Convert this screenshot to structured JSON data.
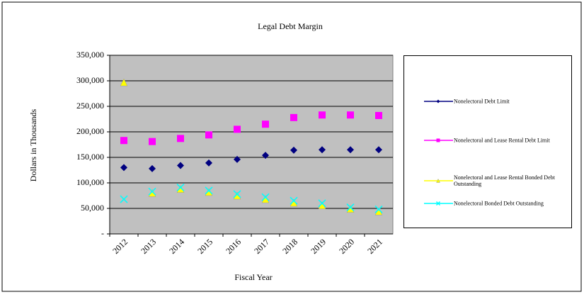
{
  "chart_data": {
    "type": "scatter",
    "title": "Legal Debt Margin",
    "x_label": "Fiscal Year",
    "y_label": "Dollars in Thousands",
    "categories": [
      "2012",
      "2013",
      "2014",
      "2015",
      "2016",
      "2017",
      "2018",
      "2019",
      "2020",
      "2021"
    ],
    "series": [
      {
        "name": "Nonelectoral Debt Limit",
        "color": "#000080",
        "marker": "diamond",
        "values": [
          130000,
          128000,
          134000,
          139000,
          146000,
          154000,
          164000,
          165000,
          165000,
          165000
        ]
      },
      {
        "name": "Nonelectoral and Lease Rental Debt Limit",
        "color": "#ff00ff",
        "marker": "square",
        "values": [
          183000,
          181000,
          187000,
          194000,
          205000,
          215000,
          228000,
          233000,
          233000,
          232000
        ]
      },
      {
        "name": "Nonelectoral and Lease Rental Bonded Debt Outstanding",
        "color": "#ffff00",
        "marker": "triangle",
        "values": [
          297000,
          80000,
          88000,
          82000,
          75000,
          68000,
          61000,
          56000,
          49000,
          44000
        ]
      },
      {
        "name": "Nonelectoral Bonded Debt Outstanding",
        "color": "#00ffff",
        "marker": "x",
        "values": [
          68000,
          83000,
          91000,
          85000,
          78000,
          72000,
          65000,
          60000,
          52000,
          48000
        ]
      }
    ],
    "ylim": [
      0,
      350000
    ],
    "yticks": [
      {
        "value": 0,
        "label": "-"
      },
      {
        "value": 50000,
        "label": "50,000"
      },
      {
        "value": 100000,
        "label": "100,000"
      },
      {
        "value": 150000,
        "label": "150,000"
      },
      {
        "value": 200000,
        "label": "200,000"
      },
      {
        "value": 250000,
        "label": "250,000"
      },
      {
        "value": 300000,
        "label": "300,000"
      },
      {
        "value": 350000,
        "label": "350,000"
      }
    ],
    "grid": true,
    "plot_background": "#c0c0c0",
    "legend": "right"
  }
}
